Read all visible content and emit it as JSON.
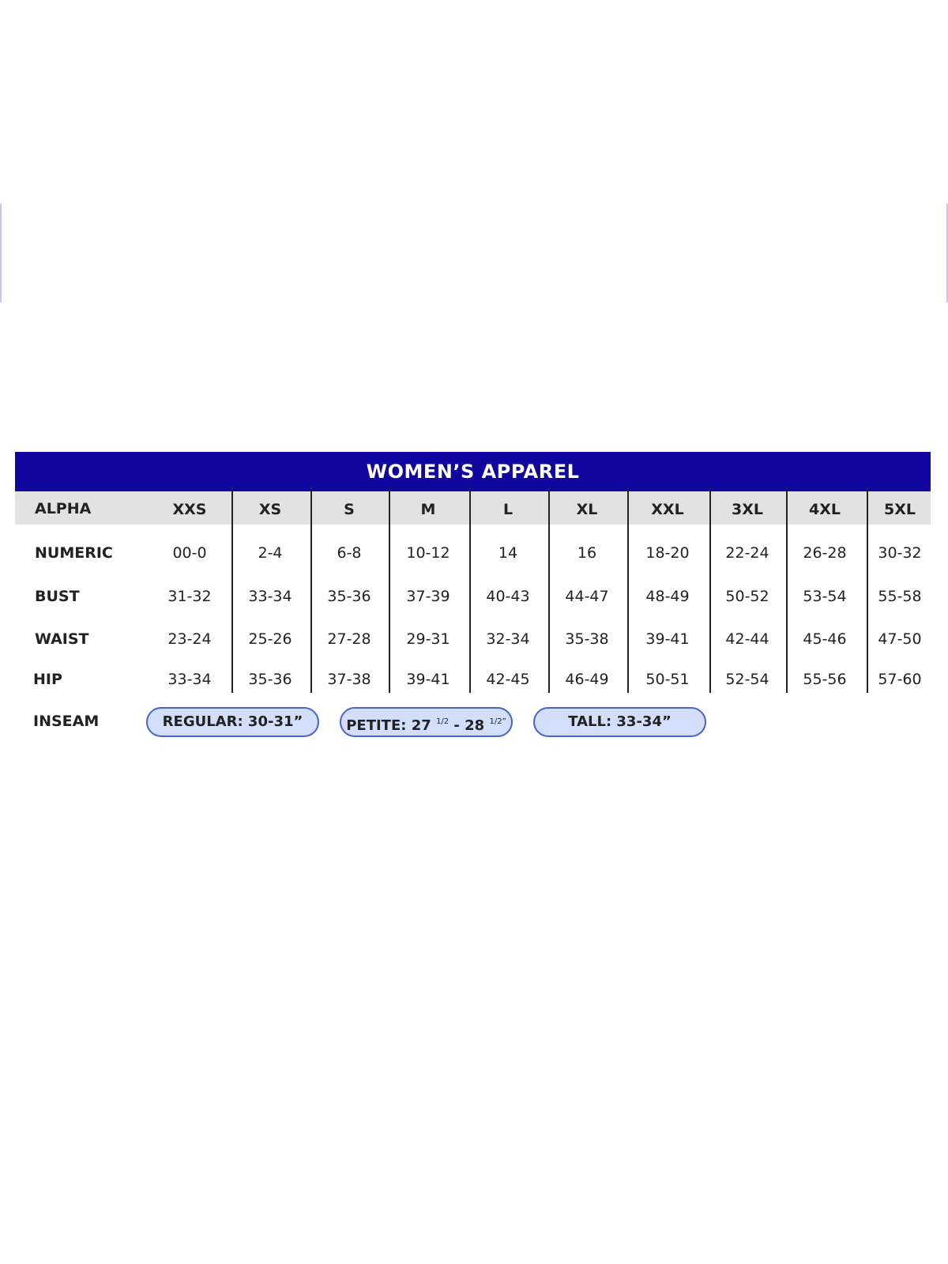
{
  "title": "WOMEN’S APPAREL",
  "colors": {
    "title_bar": "#10069f",
    "header_row": "#e2e2e2",
    "pill_fill": "#d3defb",
    "pill_border": "#4a63c8"
  },
  "table": {
    "header_label": "ALPHA",
    "sizes": [
      "XXS",
      "XS",
      "S",
      "M",
      "L",
      "XL",
      "XXL",
      "3XL",
      "4XL",
      "5XL"
    ],
    "rows": [
      {
        "label": "NUMERIC",
        "values": [
          "00-0",
          "2-4",
          "6-8",
          "10-12",
          "14",
          "16",
          "18-20",
          "22-24",
          "26-28",
          "30-32"
        ]
      },
      {
        "label": "BUST",
        "values": [
          "31-32",
          "33-34",
          "35-36",
          "37-39",
          "40-43",
          "44-47",
          "48-49",
          "50-52",
          "53-54",
          "55-58"
        ]
      },
      {
        "label": "WAIST",
        "values": [
          "23-24",
          "25-26",
          "27-28",
          "29-31",
          "32-34",
          "35-38",
          "39-41",
          "42-44",
          "45-46",
          "47-50"
        ]
      },
      {
        "label": "HIP",
        "values": [
          "33-34",
          "35-36",
          "37-38",
          "39-41",
          "42-45",
          "46-49",
          "50-51",
          "52-54",
          "55-56",
          "57-60"
        ]
      }
    ]
  },
  "inseam": {
    "label": "INSEAM",
    "regular": "REGULAR: 30-31”",
    "petite_prefix": "PETITE: 27",
    "petite_frac1": "1/2",
    "petite_mid": " - 28",
    "petite_frac2": "1/2”",
    "tall": "TALL: 33-34”"
  }
}
